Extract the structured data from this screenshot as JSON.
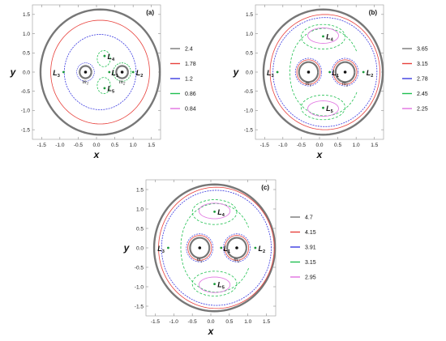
{
  "panels": [
    {
      "id": "a",
      "label": "(a)",
      "xlabel": "x",
      "ylabel": "y",
      "xticks": [
        "-1.5",
        "-1.0",
        "-0.5",
        "0.0",
        "0.5",
        "1.0",
        "1.5"
      ],
      "yticks": [
        "1.5",
        "1.0",
        "0.5",
        "0.0",
        "-0.5",
        "-1.0",
        "-1.5"
      ],
      "points": {
        "L1": "L",
        "L1_sub": "1",
        "L2": "L",
        "L2_sub": "2",
        "L3": "L",
        "L3_sub": "3",
        "L4": "L",
        "L4_sub": "4",
        "L5": "L",
        "L5_sub": "5",
        "m1": "m",
        "m1_sub": "1",
        "m2": "m",
        "m2_sub": "2"
      },
      "legend": [
        {
          "value": "2.4",
          "color": "#777777"
        },
        {
          "value": "1.78",
          "color": "#e8413c"
        },
        {
          "value": "1.2",
          "color": "#3a3ae0"
        },
        {
          "value": "0.86",
          "color": "#20c050"
        },
        {
          "value": "0.84",
          "color": "#e070e0"
        }
      ]
    },
    {
      "id": "b",
      "label": "(b)",
      "xlabel": "x",
      "ylabel": "y",
      "xticks": [
        "-1.5",
        "-1.0",
        "-0.5",
        "0.0",
        "0.5",
        "1.0",
        "1.5"
      ],
      "yticks": [
        "1.5",
        "1.0",
        "0.5",
        "0.0",
        "-0.5",
        "-1.0",
        "-1.5"
      ],
      "points": {
        "L1": "L",
        "L1_sub": "1",
        "L2": "L",
        "L2_sub": "2",
        "L3": "L",
        "L3_sub": "3",
        "L4": "L",
        "L4_sub": "4",
        "L5": "L",
        "L5_sub": "5",
        "m1": "m",
        "m1_sub": "1",
        "m2": "m",
        "m2_sub": "2"
      },
      "legend": [
        {
          "value": "3.65",
          "color": "#777777"
        },
        {
          "value": "3.15",
          "color": "#e8413c"
        },
        {
          "value": "2.78",
          "color": "#3a3ae0"
        },
        {
          "value": "2.45",
          "color": "#20c050"
        },
        {
          "value": "2.25",
          "color": "#e070e0"
        }
      ]
    },
    {
      "id": "c",
      "label": "(c)",
      "xlabel": "x",
      "ylabel": "y",
      "xticks": [
        "-1.5",
        "-1.0",
        "-0.5",
        "0.0",
        "0.5",
        "1.0",
        "1.5"
      ],
      "yticks": [
        "1.5",
        "1.0",
        "0.5",
        "0.0",
        "-0.5",
        "-1.0",
        "-1.5"
      ],
      "points": {
        "L1": "L",
        "L1_sub": "1",
        "L2": "L",
        "L2_sub": "2",
        "L3": "L",
        "L3_sub": "3",
        "L4": "L",
        "L4_sub": "4",
        "L5": "L",
        "L5_sub": "5",
        "m1": "m",
        "m1_sub": "1",
        "m2": "m",
        "m2_sub": "2"
      },
      "legend": [
        {
          "value": "4.7",
          "color": "#777777"
        },
        {
          "value": "4.15",
          "color": "#e8413c"
        },
        {
          "value": "3.91",
          "color": "#3a3ae0"
        },
        {
          "value": "3.15",
          "color": "#20c050"
        },
        {
          "value": "2.95",
          "color": "#e070e0"
        }
      ]
    }
  ]
}
